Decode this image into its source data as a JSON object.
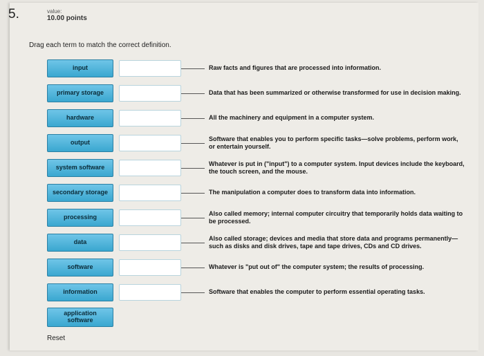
{
  "question": {
    "number": "5.",
    "value_label": "value:",
    "points": "10.00 points"
  },
  "instruction": "Drag each term to match the correct definition.",
  "rows": [
    {
      "term": "input",
      "def": "Raw facts and figures that are processed into information."
    },
    {
      "term": "primary storage",
      "def": "Data that has been summarized or otherwise transformed for use in decision making."
    },
    {
      "term": "hardware",
      "def": "All the machinery and equipment in a computer system."
    },
    {
      "term": "output",
      "def": "Software that enables you to perform specific tasks—solve problems, perform work, or entertain yourself."
    },
    {
      "term": "system software",
      "def": "Whatever is put in (\"input\") to a computer system. Input devices include the keyboard, the touch screen, and the mouse."
    },
    {
      "term": "secondary storage",
      "def": "The manipulation a computer does to transform data into information."
    },
    {
      "term": "processing",
      "def": "Also called memory; internal computer circuitry that temporarily holds data waiting to be processed."
    },
    {
      "term": "data",
      "def": "Also called storage; devices and media that store data and programs permanently—such as disks and disk drives, tape and tape drives, CDs and CD drives."
    },
    {
      "term": "software",
      "def": "Whatever is \"put out of\" the computer system; the results of processing."
    },
    {
      "term": "information",
      "def": "Software that enables the computer to perform essential operating tasks."
    },
    {
      "term": "application software",
      "def": ""
    }
  ],
  "reset_label": "Reset",
  "colors": {
    "term_bg_top": "#6fc5e8",
    "term_bg_bottom": "#3aa7d0",
    "term_border": "#2a7fa3",
    "page_bg": "#eeece7"
  }
}
